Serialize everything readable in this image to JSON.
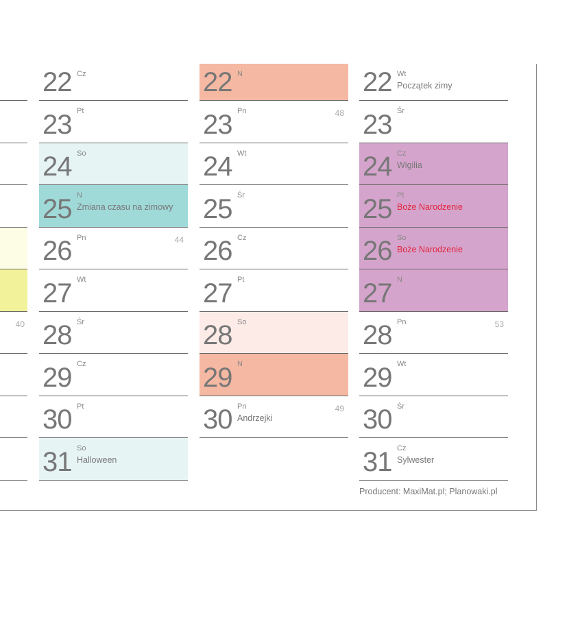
{
  "left_partial": {
    "rows": [
      {},
      {},
      {},
      {},
      {
        "bg": "#fdfde6"
      },
      {
        "bg": "#f1f29a"
      },
      {
        "week": "40"
      },
      {},
      {},
      {}
    ]
  },
  "columns": [
    {
      "days": [
        {
          "num": "22",
          "day": "Cz"
        },
        {
          "num": "23",
          "day": "Pt"
        },
        {
          "num": "24",
          "day": "So",
          "bg": "#e6f4f4"
        },
        {
          "num": "25",
          "day": "N",
          "note": "Zmiana czasu na zimowy",
          "bg": "#9fd9d8"
        },
        {
          "num": "26",
          "day": "Pn",
          "week": "44"
        },
        {
          "num": "27",
          "day": "Wt"
        },
        {
          "num": "28",
          "day": "Śr"
        },
        {
          "num": "29",
          "day": "Cz"
        },
        {
          "num": "30",
          "day": "Pt"
        },
        {
          "num": "31",
          "day": "So",
          "note": "Halloween",
          "bg": "#e6f4f4"
        }
      ]
    },
    {
      "days": [
        {
          "num": "22",
          "day": "N",
          "bg": "#f5b8a2"
        },
        {
          "num": "23",
          "day": "Pn",
          "week": "48"
        },
        {
          "num": "24",
          "day": "Wt"
        },
        {
          "num": "25",
          "day": "Śr"
        },
        {
          "num": "26",
          "day": "Cz"
        },
        {
          "num": "27",
          "day": "Pt"
        },
        {
          "num": "28",
          "day": "So",
          "bg": "#fcebe7"
        },
        {
          "num": "29",
          "day": "N",
          "bg": "#f5b8a2"
        },
        {
          "num": "30",
          "day": "Pn",
          "note": "Andrzejki",
          "week": "49"
        }
      ]
    },
    {
      "days": [
        {
          "num": "22",
          "day": "Wt",
          "note": "Początek zimy"
        },
        {
          "num": "23",
          "day": "Śr"
        },
        {
          "num": "24",
          "day": "Cz",
          "note": "Wigilia",
          "bg": "#d5a4cc"
        },
        {
          "num": "25",
          "day": "Pt",
          "note": "Boże Narodzenie",
          "note_red": true,
          "bg": "#d5a4cc"
        },
        {
          "num": "26",
          "day": "So",
          "note": "Boże Narodzenie",
          "note_red": true,
          "bg": "#d5a4cc"
        },
        {
          "num": "27",
          "day": "N",
          "bg": "#d5a4cc"
        },
        {
          "num": "28",
          "day": "Pn",
          "week": "53"
        },
        {
          "num": "29",
          "day": "Wt"
        },
        {
          "num": "30",
          "day": "Śr"
        },
        {
          "num": "31",
          "day": "Cz",
          "note": "Sylwester"
        }
      ]
    }
  ],
  "footer": "Producent: MaxiMat.pl;  Planowaki.pl"
}
